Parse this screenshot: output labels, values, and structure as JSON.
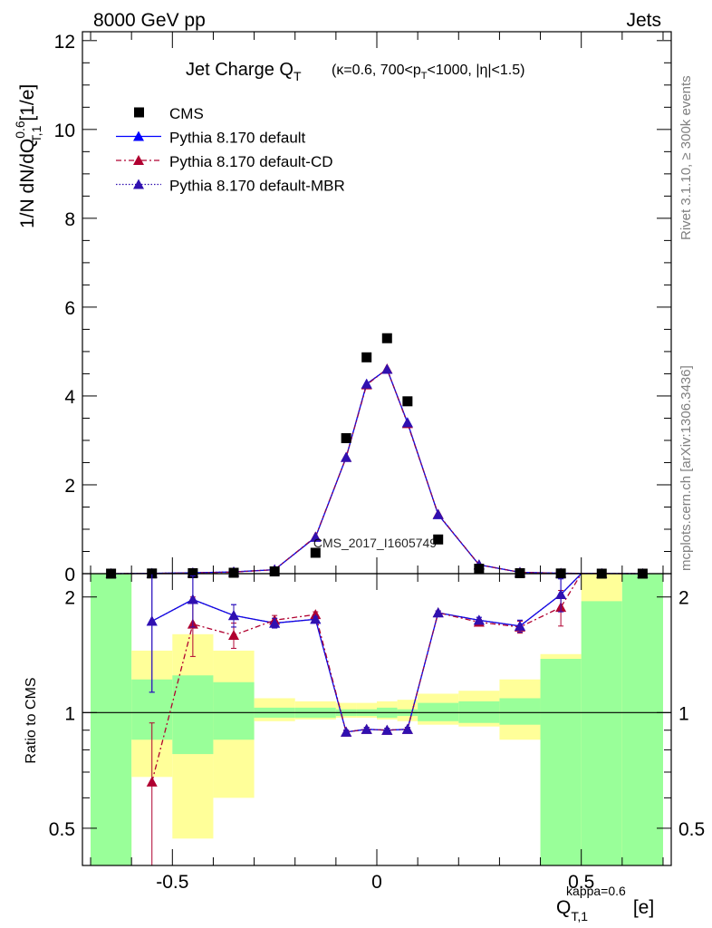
{
  "header": {
    "left": "8000 GeV pp",
    "right": "Jets"
  },
  "side_labels": {
    "rivet": "Rivet 3.1.10, ≥ 300k events",
    "mcplots": "mcplots.cern.ch [arXiv:1306.3436]"
  },
  "watermark": "CMS_2017_I1605749",
  "chart_data": [
    {
      "type": "scatter",
      "panel": "main",
      "title": {
        "main": "Jet Charge Q",
        "sub": "T",
        "details": "(κ=0.6, 700<p",
        "details_sub": "T",
        "details_end": "<1000, |η|<1.5)"
      },
      "ylabel": {
        "pre": "1/N dN/dQ",
        "sup": "0.6",
        "sub": "T,1",
        "unit": "[1/e]"
      },
      "ylim": [
        0,
        12.2
      ],
      "yticks": [
        0,
        2,
        4,
        6,
        8,
        10,
        12
      ],
      "xlim": [
        -0.72,
        0.72
      ],
      "legend": [
        "CMS",
        "Pythia 8.170 default",
        "Pythia 8.170 default-CD",
        "Pythia 8.170 default-MBR"
      ],
      "x": [
        -0.65,
        -0.55,
        -0.45,
        -0.35,
        -0.25,
        -0.15,
        -0.075,
        -0.025,
        0.025,
        0.075,
        0.15,
        0.25,
        0.35,
        0.45,
        0.55,
        0.65
      ],
      "series": [
        {
          "name": "CMS",
          "color": "#000000",
          "values": [
            0.0,
            0.004,
            0.01,
            0.02,
            0.05,
            0.47,
            3.05,
            4.87,
            5.3,
            3.88,
            0.77,
            0.11,
            0.01,
            0.004,
            0.0,
            0.0
          ]
        },
        {
          "name": "Pythia 8.170 default",
          "color": "#0000ff",
          "values": [
            0.0,
            0.007,
            0.02,
            0.04,
            0.09,
            0.82,
            2.62,
            4.27,
            4.6,
            3.4,
            1.33,
            0.2,
            0.03,
            0.01,
            0.004,
            0.0
          ]
        },
        {
          "name": "Pythia 8.170 default-CD",
          "color": "#b00030",
          "values": [
            0.0,
            0.003,
            0.018,
            0.035,
            0.09,
            0.83,
            2.62,
            4.25,
            4.61,
            3.38,
            1.34,
            0.2,
            0.03,
            0.009,
            0.003,
            0.0
          ]
        },
        {
          "name": "Pythia 8.170 default-MBR",
          "color": "#3010b0",
          "values": [
            0.0,
            0.007,
            0.02,
            0.04,
            0.09,
            0.82,
            2.62,
            4.27,
            4.6,
            3.4,
            1.33,
            0.2,
            0.03,
            0.01,
            0.004,
            0.0
          ]
        }
      ]
    },
    {
      "type": "line",
      "panel": "ratio",
      "ylabel": "Ratio to CMS",
      "xlabel": {
        "pre": "Q",
        "sub": "T,1",
        "sup": "kappa=0.6",
        "unit": "[e]"
      },
      "ylim": [
        0.4,
        2.3
      ],
      "yscale": "log",
      "yticks": [
        0.5,
        1,
        2
      ],
      "xticks": [
        -0.5,
        0,
        0.5
      ],
      "xlim": [
        -0.72,
        0.72
      ],
      "bins": [
        [
          -0.7,
          -0.6
        ],
        [
          -0.6,
          -0.5
        ],
        [
          -0.5,
          -0.4
        ],
        [
          -0.4,
          -0.3
        ],
        [
          -0.3,
          -0.2
        ],
        [
          -0.2,
          -0.1
        ],
        [
          -0.1,
          -0.05
        ],
        [
          -0.05,
          0.0
        ],
        [
          0.0,
          0.05
        ],
        [
          0.05,
          0.1
        ],
        [
          0.1,
          0.2
        ],
        [
          0.2,
          0.3
        ],
        [
          0.3,
          0.4
        ],
        [
          0.4,
          0.5
        ],
        [
          0.5,
          0.6
        ],
        [
          0.6,
          0.7
        ]
      ],
      "band_stat": [
        [
          0.4,
          2.3
        ],
        [
          0.85,
          1.22
        ],
        [
          0.78,
          1.25
        ],
        [
          0.85,
          1.2
        ],
        [
          0.97,
          1.03
        ],
        [
          0.97,
          1.03
        ],
        [
          0.98,
          1.02
        ],
        [
          0.98,
          1.02
        ],
        [
          0.97,
          1.03
        ],
        [
          0.98,
          1.02
        ],
        [
          0.95,
          1.06
        ],
        [
          0.94,
          1.07
        ],
        [
          0.93,
          1.09
        ],
        [
          0.4,
          1.38
        ],
        [
          0.4,
          1.95
        ],
        [
          0.4,
          2.3
        ]
      ],
      "band_total": [
        [
          0.4,
          2.3
        ],
        [
          0.68,
          1.45
        ],
        [
          0.47,
          1.6
        ],
        [
          0.6,
          1.45
        ],
        [
          0.95,
          1.09
        ],
        [
          0.96,
          1.07
        ],
        [
          0.97,
          1.06
        ],
        [
          0.97,
          1.06
        ],
        [
          0.96,
          1.07
        ],
        [
          0.95,
          1.08
        ],
        [
          0.93,
          1.12
        ],
        [
          0.92,
          1.14
        ],
        [
          0.85,
          1.22
        ],
        [
          0.4,
          1.42
        ],
        [
          0.4,
          2.3
        ],
        [
          0.4,
          2.3
        ]
      ],
      "x": [
        -0.55,
        -0.45,
        -0.35,
        -0.25,
        -0.15,
        -0.075,
        -0.025,
        0.025,
        0.075,
        0.15,
        0.25,
        0.35,
        0.45,
        0.5
      ],
      "series": [
        {
          "name": "Pythia 8.170 default",
          "color": "#0000ff",
          "values": [
            1.73,
            1.97,
            1.79,
            1.71,
            1.75,
            0.89,
            0.905,
            0.9,
            0.905,
            1.82,
            1.74,
            1.68,
            2.03,
            2.3
          ],
          "errors": [
            0.6,
            0.3,
            0.12,
            0.05,
            0.03,
            0.01,
            0.01,
            0.01,
            0.01,
            0.02,
            0.03,
            0.06,
            0.2,
            0
          ]
        },
        {
          "name": "Pythia 8.170 default-CD",
          "color": "#b00030",
          "values": [
            0.66,
            1.7,
            1.59,
            1.74,
            1.8,
            0.89,
            0.905,
            0.9,
            0.905,
            1.82,
            1.72,
            1.67,
            1.88,
            2.3
          ],
          "errors": [
            0.28,
            0.3,
            0.12,
            0.05,
            0.03,
            0.01,
            0.01,
            0.01,
            0.01,
            0.02,
            0.03,
            0.06,
            0.2,
            0
          ]
        },
        {
          "name": "Pythia 8.170 default-MBR",
          "color": "#3010b0",
          "values": [
            1.73,
            1.97,
            1.79,
            1.71,
            1.75,
            0.89,
            0.905,
            0.9,
            0.905,
            1.82,
            1.74,
            1.68,
            2.03,
            2.3
          ],
          "errors": [
            0.6,
            0.3,
            0.12,
            0.05,
            0.03,
            0.01,
            0.01,
            0.01,
            0.01,
            0.02,
            0.03,
            0.06,
            0.2,
            0
          ]
        }
      ]
    }
  ]
}
